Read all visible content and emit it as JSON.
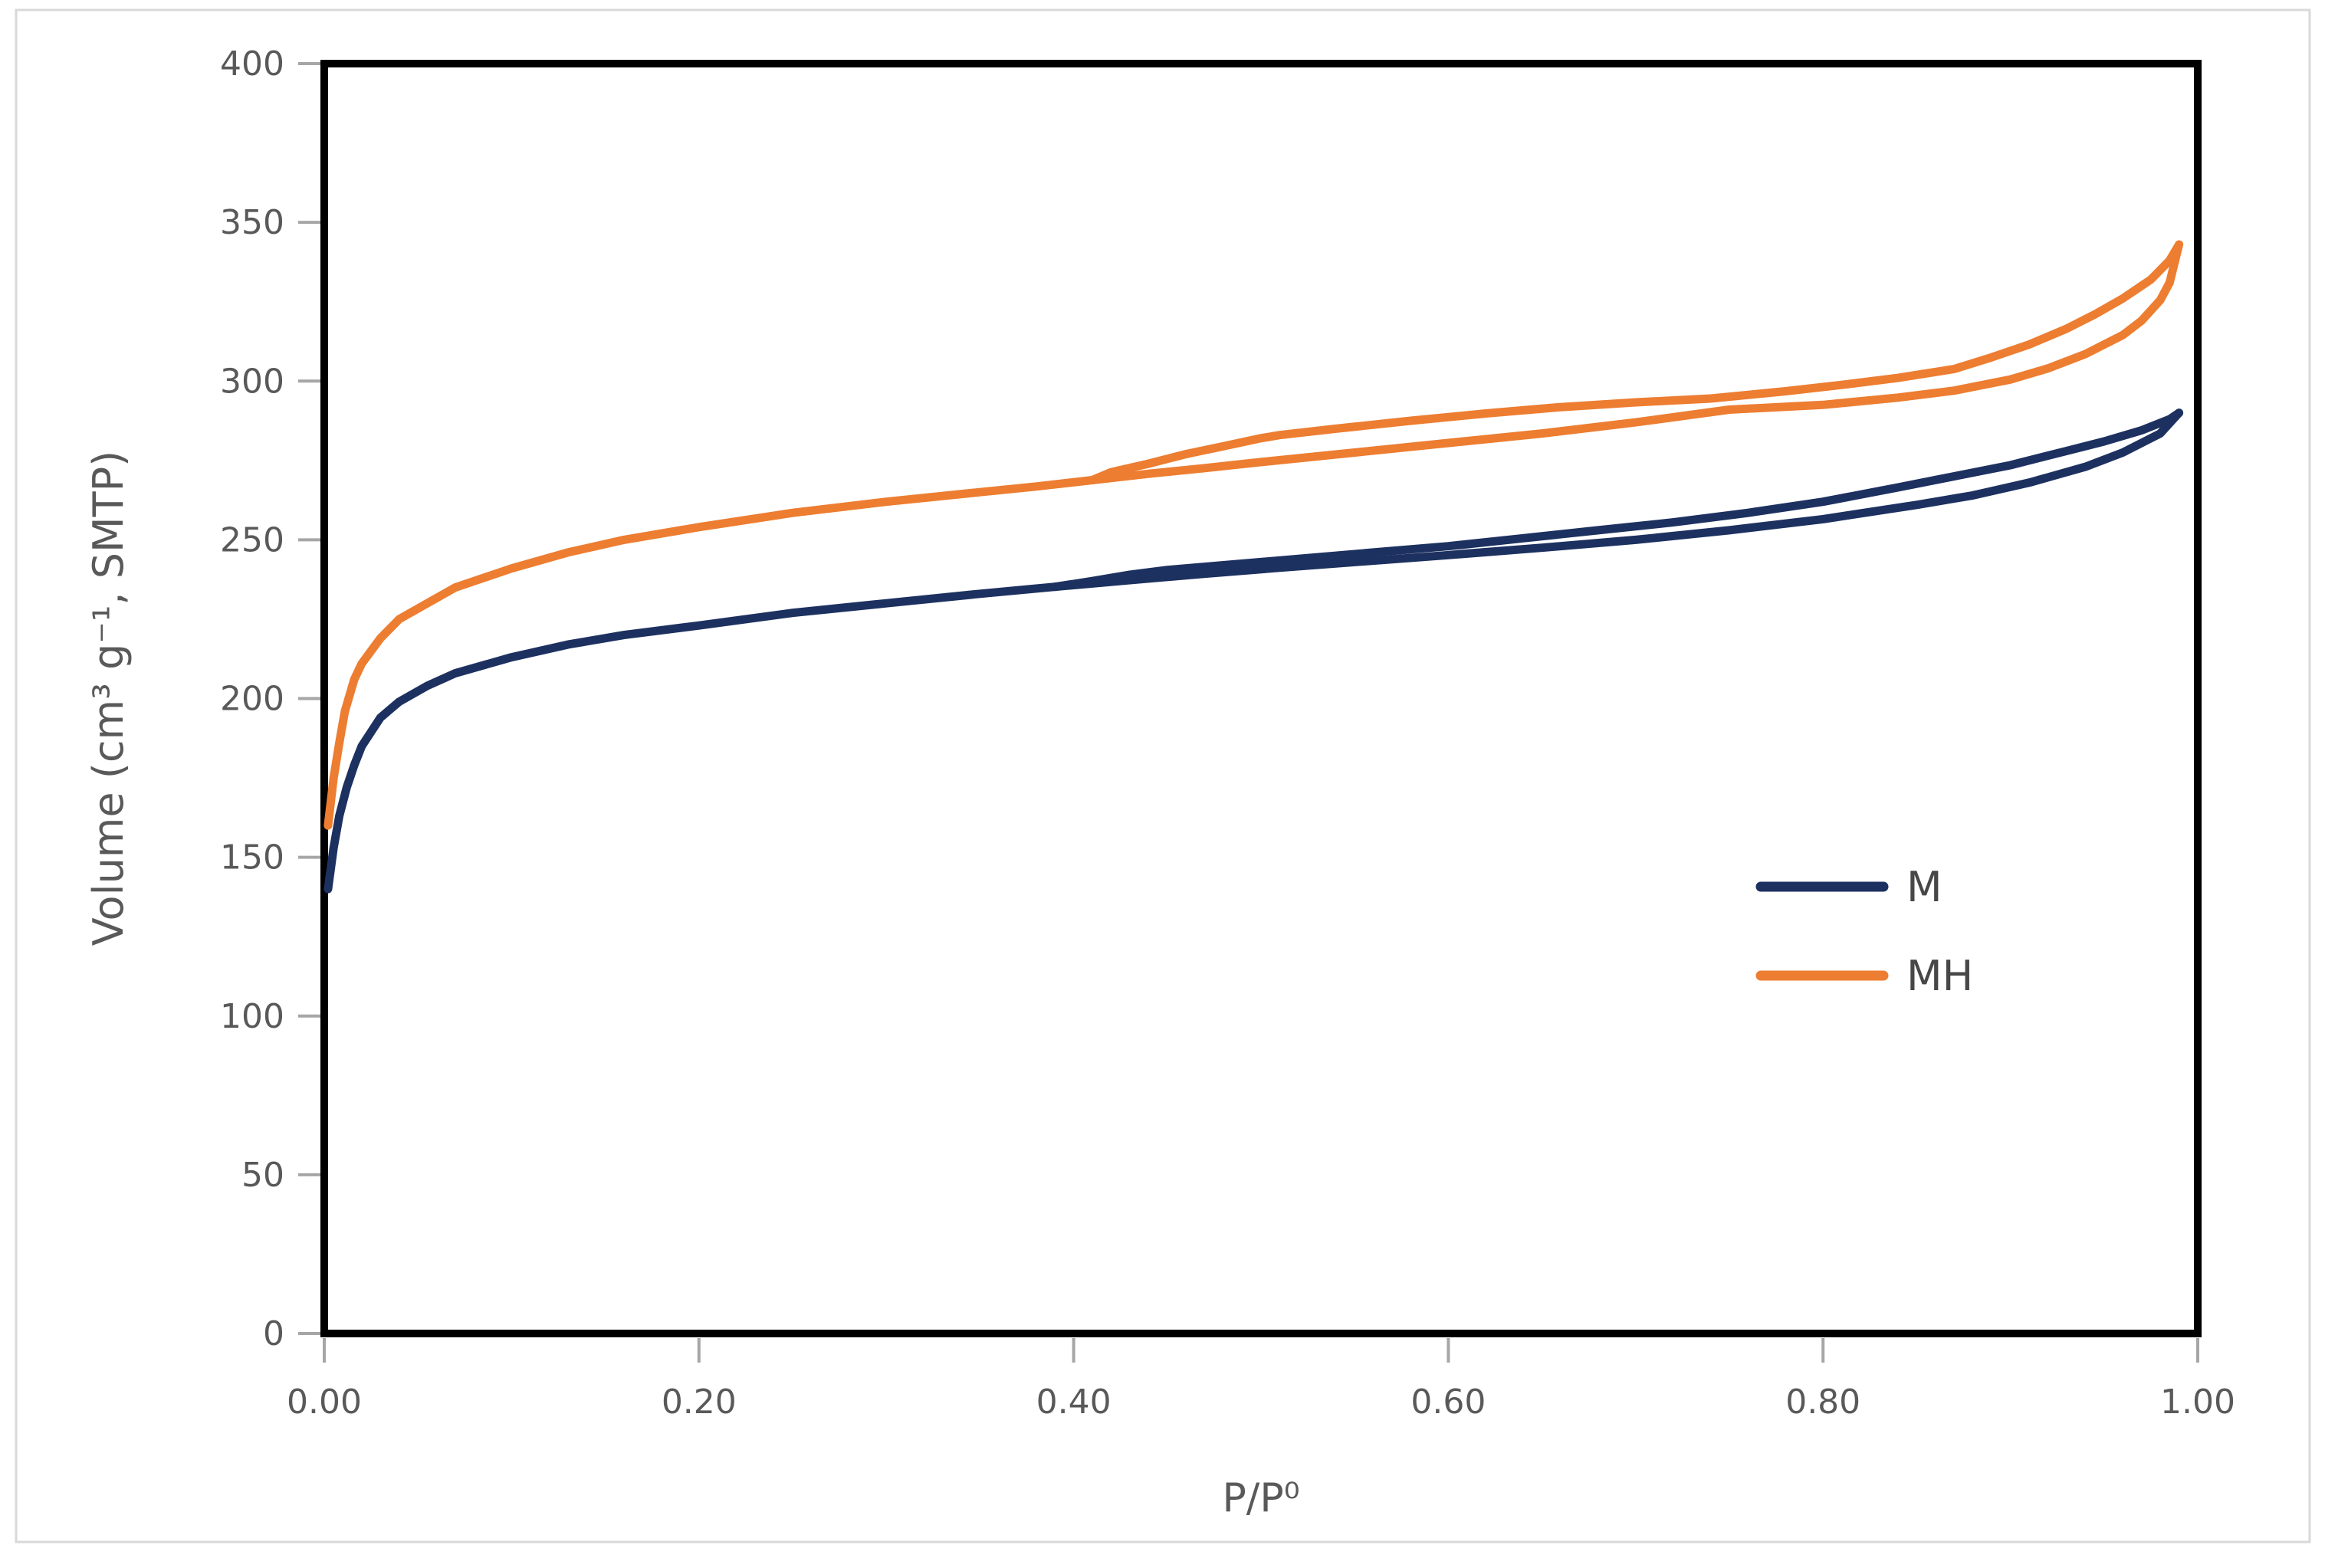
{
  "figure": {
    "background": "#ffffff",
    "frame_color": "#d9d9d9"
  },
  "chart_data": {
    "type": "line",
    "title": "",
    "xlabel": "P/P⁰",
    "ylabel": "Volume (cm³ g⁻¹, SMTP)",
    "xlim": [
      0,
      1
    ],
    "ylim": [
      0,
      400
    ],
    "x_ticks": [
      0,
      0.2,
      0.4,
      0.6,
      0.8,
      1.0
    ],
    "x_tick_labels": [
      "0.00",
      "0.20",
      "0.40",
      "0.60",
      "0.80",
      "1.00"
    ],
    "y_ticks": [
      0,
      50,
      100,
      150,
      200,
      250,
      300,
      350,
      400
    ],
    "y_tick_labels": [
      "0",
      "50",
      "100",
      "150",
      "200",
      "250",
      "300",
      "350",
      "400"
    ],
    "grid": false,
    "axis_box_color": "#000000",
    "tick_mark_color": "#a6a6a6",
    "label_color": "#595959",
    "legend": {
      "position": "inside-right",
      "items": [
        {
          "label": "M",
          "color": "#1d3160"
        },
        {
          "label": "MH",
          "color": "#ed7d31"
        }
      ]
    },
    "series": [
      {
        "name": "M",
        "color": "#1d3160",
        "branches": {
          "adsorption": [
            [
              0.002,
              140
            ],
            [
              0.005,
              153
            ],
            [
              0.008,
              163
            ],
            [
              0.012,
              172
            ],
            [
              0.016,
              179
            ],
            [
              0.02,
              185
            ],
            [
              0.03,
              194
            ],
            [
              0.04,
              199
            ],
            [
              0.055,
              204
            ],
            [
              0.07,
              208
            ],
            [
              0.1,
              213
            ],
            [
              0.13,
              217
            ],
            [
              0.16,
              220
            ],
            [
              0.2,
              223
            ],
            [
              0.25,
              227
            ],
            [
              0.3,
              230
            ],
            [
              0.35,
              233
            ],
            [
              0.39,
              235.2
            ],
            [
              0.43,
              237.3
            ],
            [
              0.47,
              239.3
            ],
            [
              0.51,
              241.2
            ],
            [
              0.55,
              243
            ],
            [
              0.6,
              245.2
            ],
            [
              0.65,
              247.5
            ],
            [
              0.7,
              250
            ],
            [
              0.75,
              253
            ],
            [
              0.8,
              256.5
            ],
            [
              0.85,
              261
            ],
            [
              0.88,
              264
            ],
            [
              0.91,
              268
            ],
            [
              0.94,
              273
            ],
            [
              0.96,
              277.5
            ],
            [
              0.98,
              283.5
            ],
            [
              0.99,
              290
            ]
          ],
          "desorption": [
            [
              0.99,
              290
            ],
            [
              0.985,
              288
            ],
            [
              0.97,
              284.5
            ],
            [
              0.95,
              281
            ],
            [
              0.93,
              278
            ],
            [
              0.9,
              273.5
            ],
            [
              0.87,
              270
            ],
            [
              0.84,
              266.5
            ],
            [
              0.8,
              262
            ],
            [
              0.76,
              258.5
            ],
            [
              0.72,
              255.5
            ],
            [
              0.68,
              253
            ],
            [
              0.64,
              250.5
            ],
            [
              0.6,
              248
            ],
            [
              0.56,
              246
            ],
            [
              0.52,
              244
            ],
            [
              0.48,
              242
            ],
            [
              0.45,
              240.5
            ],
            [
              0.43,
              239
            ],
            [
              0.41,
              237
            ],
            [
              0.39,
              235.2
            ]
          ]
        }
      },
      {
        "name": "MH",
        "color": "#ed7d31",
        "branches": {
          "adsorption": [
            [
              0.002,
              160
            ],
            [
              0.005,
              175
            ],
            [
              0.008,
              186
            ],
            [
              0.011,
              196
            ],
            [
              0.016,
              206
            ],
            [
              0.02,
              211
            ],
            [
              0.03,
              219
            ],
            [
              0.04,
              225
            ],
            [
              0.055,
              230
            ],
            [
              0.07,
              235
            ],
            [
              0.1,
              241
            ],
            [
              0.13,
              246
            ],
            [
              0.16,
              250
            ],
            [
              0.2,
              254
            ],
            [
              0.25,
              258.5
            ],
            [
              0.3,
              262
            ],
            [
              0.35,
              265
            ],
            [
              0.38,
              266.8
            ],
            [
              0.41,
              268.8
            ],
            [
              0.44,
              270.8
            ],
            [
              0.47,
              272.6
            ],
            [
              0.5,
              274.5
            ],
            [
              0.55,
              277.5
            ],
            [
              0.6,
              280.5
            ],
            [
              0.65,
              283.5
            ],
            [
              0.7,
              287
            ],
            [
              0.75,
              291
            ],
            [
              0.8,
              292.5
            ],
            [
              0.84,
              294.8
            ],
            [
              0.87,
              297
            ],
            [
              0.9,
              300.5
            ],
            [
              0.92,
              304
            ],
            [
              0.94,
              308.5
            ],
            [
              0.96,
              314.5
            ],
            [
              0.97,
              319
            ],
            [
              0.98,
              325.5
            ],
            [
              0.985,
              331
            ],
            [
              0.99,
              343
            ]
          ],
          "desorption": [
            [
              0.99,
              343
            ],
            [
              0.985,
              338
            ],
            [
              0.975,
              332
            ],
            [
              0.96,
              326
            ],
            [
              0.945,
              321
            ],
            [
              0.93,
              316.5
            ],
            [
              0.91,
              311.5
            ],
            [
              0.89,
              307.5
            ],
            [
              0.87,
              303.8
            ],
            [
              0.84,
              301
            ],
            [
              0.81,
              298.8
            ],
            [
              0.78,
              296.8
            ],
            [
              0.74,
              294.5
            ],
            [
              0.7,
              293.3
            ],
            [
              0.66,
              291.8
            ],
            [
              0.62,
              289.8
            ],
            [
              0.58,
              287.5
            ],
            [
              0.54,
              285
            ],
            [
              0.51,
              283
            ],
            [
              0.5,
              282
            ],
            [
              0.48,
              279.5
            ],
            [
              0.46,
              277
            ],
            [
              0.44,
              274
            ],
            [
              0.42,
              271.3
            ],
            [
              0.41,
              268.8
            ]
          ]
        }
      }
    ]
  }
}
